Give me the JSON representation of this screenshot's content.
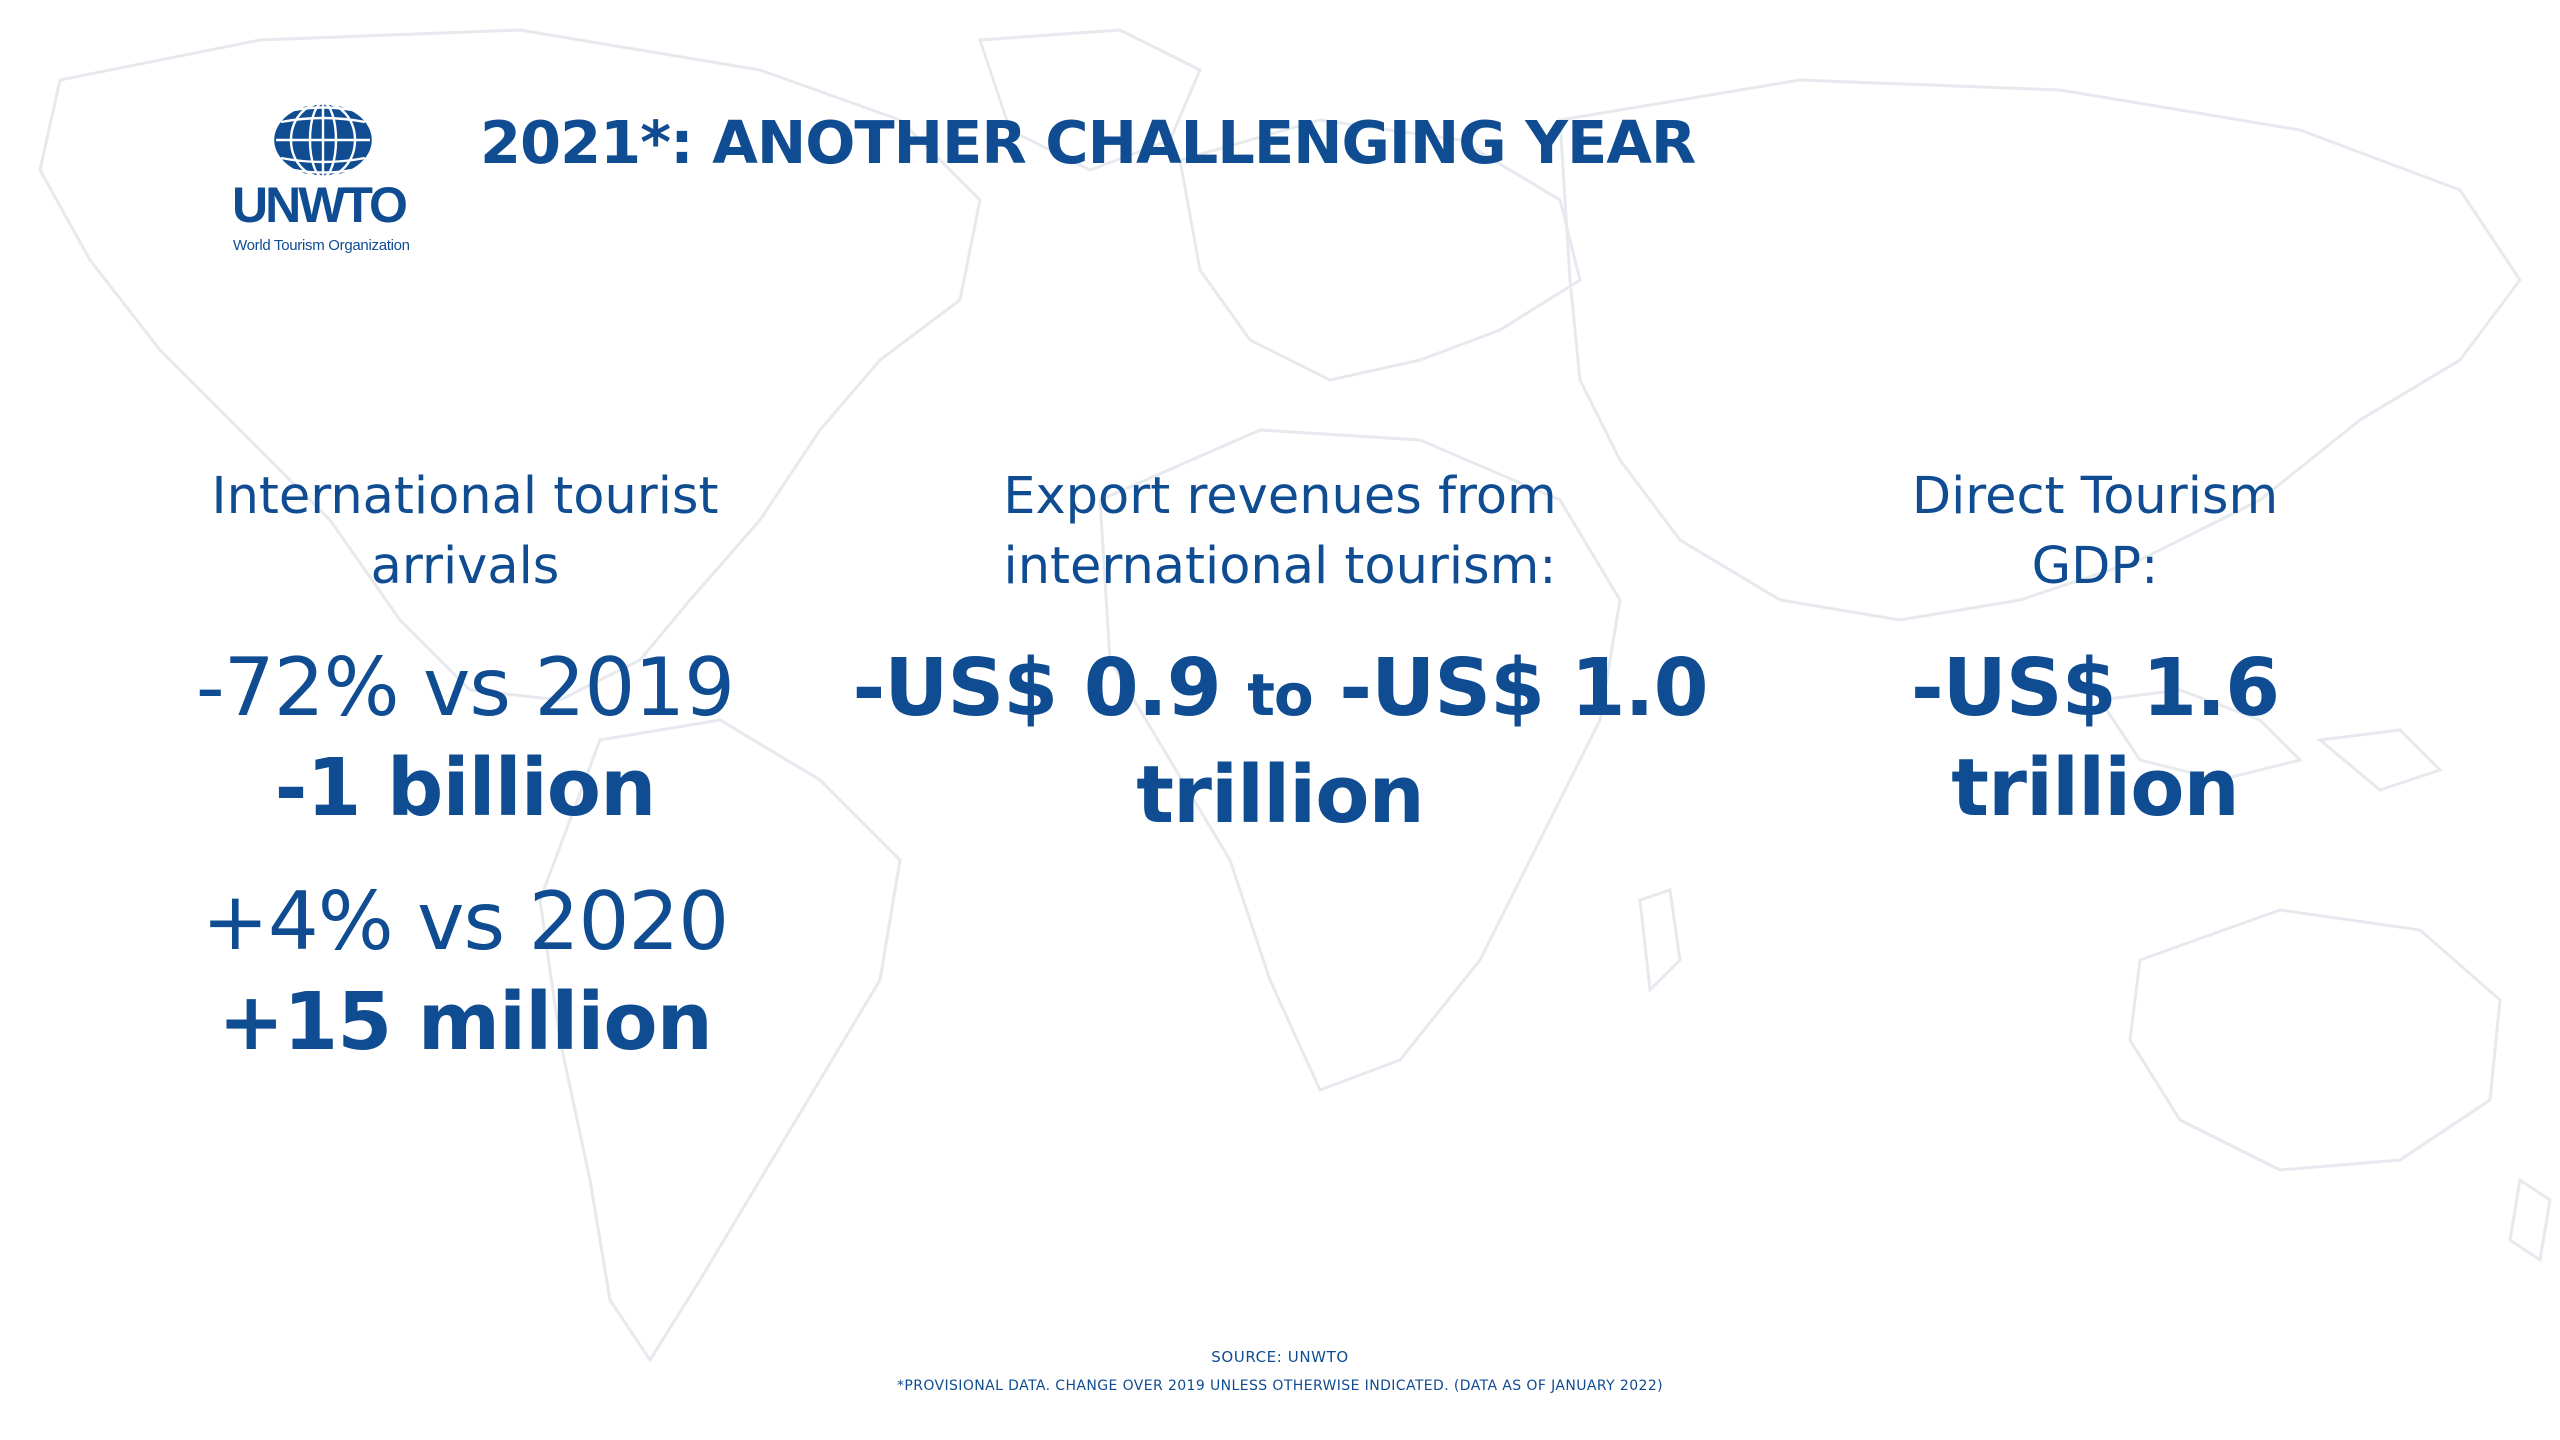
{
  "colors": {
    "brand_blue": "#0f4c92",
    "map_outline": "#e6e9ee",
    "background": "#ffffff"
  },
  "logo": {
    "icon": "globe-icon",
    "mark": "UNWTO",
    "subtitle": "World Tourism Organization"
  },
  "title": "2021*: ANOTHER CHALLENGING YEAR",
  "columns": [
    {
      "label_line1": "International tourist",
      "label_line2": "arrivals",
      "metrics": [
        {
          "change": "-72% vs 2019",
          "value": "-1 billion"
        },
        {
          "change": "+4% vs 2020",
          "value": "+15 million"
        }
      ]
    },
    {
      "label_line1": "Export revenues from",
      "label_line2": "international tourism:",
      "value_line1_a": "-US$ 0.9 ",
      "value_line1_b": "to",
      "value_line1_c": " -US$ 1.0",
      "value_line2": "trillion"
    },
    {
      "label_line1": "Direct Tourism",
      "label_line2": "GDP:",
      "value_line1": "-US$ 1.6",
      "value_line2": "trillion"
    }
  ],
  "footer": {
    "source": "SOURCE: UNWTO",
    "note": "*PROVISIONAL DATA. CHANGE OVER 2019 UNLESS OTHERWISE INDICATED. (DATA AS OF JANUARY 2022)"
  }
}
